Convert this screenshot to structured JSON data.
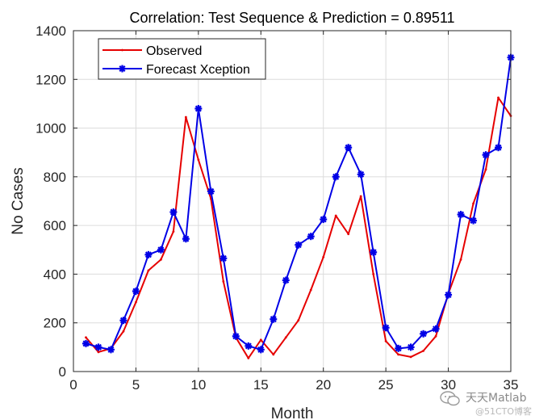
{
  "chart_data": {
    "type": "line",
    "title": "Correlation: Test Sequence & Prediction = 0.89511",
    "xlabel": "Month",
    "ylabel": "No Cases",
    "xlim": [
      0,
      35
    ],
    "ylim": [
      0,
      1400
    ],
    "xticks": [
      0,
      5,
      10,
      15,
      20,
      25,
      30,
      35
    ],
    "yticks": [
      0,
      200,
      400,
      600,
      800,
      1000,
      1200,
      1400
    ],
    "grid": true,
    "legend_position": "top-left",
    "x": [
      1,
      2,
      3,
      4,
      5,
      6,
      7,
      8,
      9,
      10,
      11,
      12,
      13,
      14,
      15,
      16,
      17,
      18,
      19,
      20,
      21,
      22,
      23,
      24,
      25,
      26,
      27,
      28,
      29,
      30,
      31,
      32,
      33,
      34,
      35
    ],
    "series": [
      {
        "name": "Observed",
        "color": "#e60000",
        "marker": "point",
        "values": [
          140,
          80,
          95,
          165,
          285,
          415,
          460,
          575,
          1045,
          870,
          710,
          370,
          140,
          55,
          130,
          70,
          140,
          210,
          335,
          470,
          640,
          565,
          720,
          400,
          125,
          70,
          60,
          85,
          145,
          320,
          460,
          690,
          830,
          1125,
          1050
        ]
      },
      {
        "name": "Forecast Xception",
        "color": "#0000e6",
        "marker": "star",
        "values": [
          115,
          100,
          90,
          210,
          330,
          480,
          500,
          655,
          545,
          1080,
          740,
          465,
          145,
          105,
          90,
          215,
          375,
          520,
          555,
          625,
          800,
          920,
          810,
          490,
          180,
          95,
          100,
          155,
          175,
          315,
          645,
          620,
          890,
          920,
          1290
        ]
      }
    ]
  },
  "watermark": {
    "line1": "天天Matlab",
    "line2": "@51CTO博客",
    "logo_icon": "wechat-icon"
  }
}
